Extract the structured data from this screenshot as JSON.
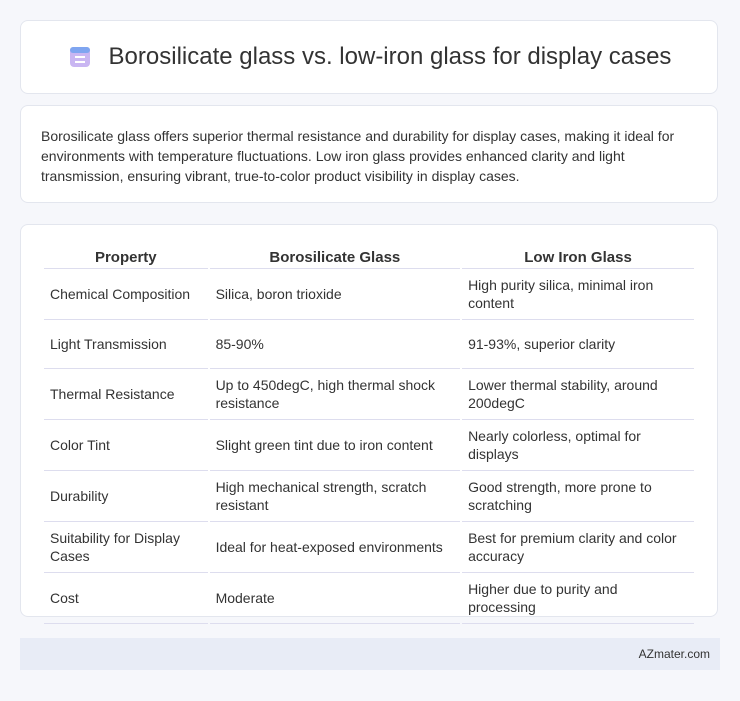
{
  "header": {
    "title": "Borosilicate glass vs. low-iron glass for display cases"
  },
  "intro": "Borosilicate glass offers superior thermal resistance and durability for display cases, making it ideal for environments with temperature fluctuations. Low iron glass provides enhanced clarity and light transmission, ensuring vibrant, true-to-color product visibility in display cases.",
  "table": {
    "columns": [
      "Property",
      "Borosilicate Glass",
      "Low Iron Glass"
    ],
    "rows": [
      [
        "Chemical Composition",
        "Silica, boron trioxide",
        "High purity silica, minimal iron content"
      ],
      [
        "Light Transmission",
        "85-90%",
        "91-93%, superior clarity"
      ],
      [
        "Thermal Resistance",
        "Up to 450degC, high thermal shock resistance",
        "Lower thermal stability, around 200degC"
      ],
      [
        "Color Tint",
        "Slight green tint due to iron content",
        "Nearly colorless, optimal for displays"
      ],
      [
        "Durability",
        "High mechanical strength, scratch resistant",
        "Good strength, more prone to scratching"
      ],
      [
        "Suitability for Display Cases",
        "Ideal for heat-exposed environments",
        "Best for premium clarity and color accuracy"
      ],
      [
        "Cost",
        "Moderate",
        "Higher due to purity and processing"
      ]
    ]
  },
  "footer": "AZmater.com"
}
